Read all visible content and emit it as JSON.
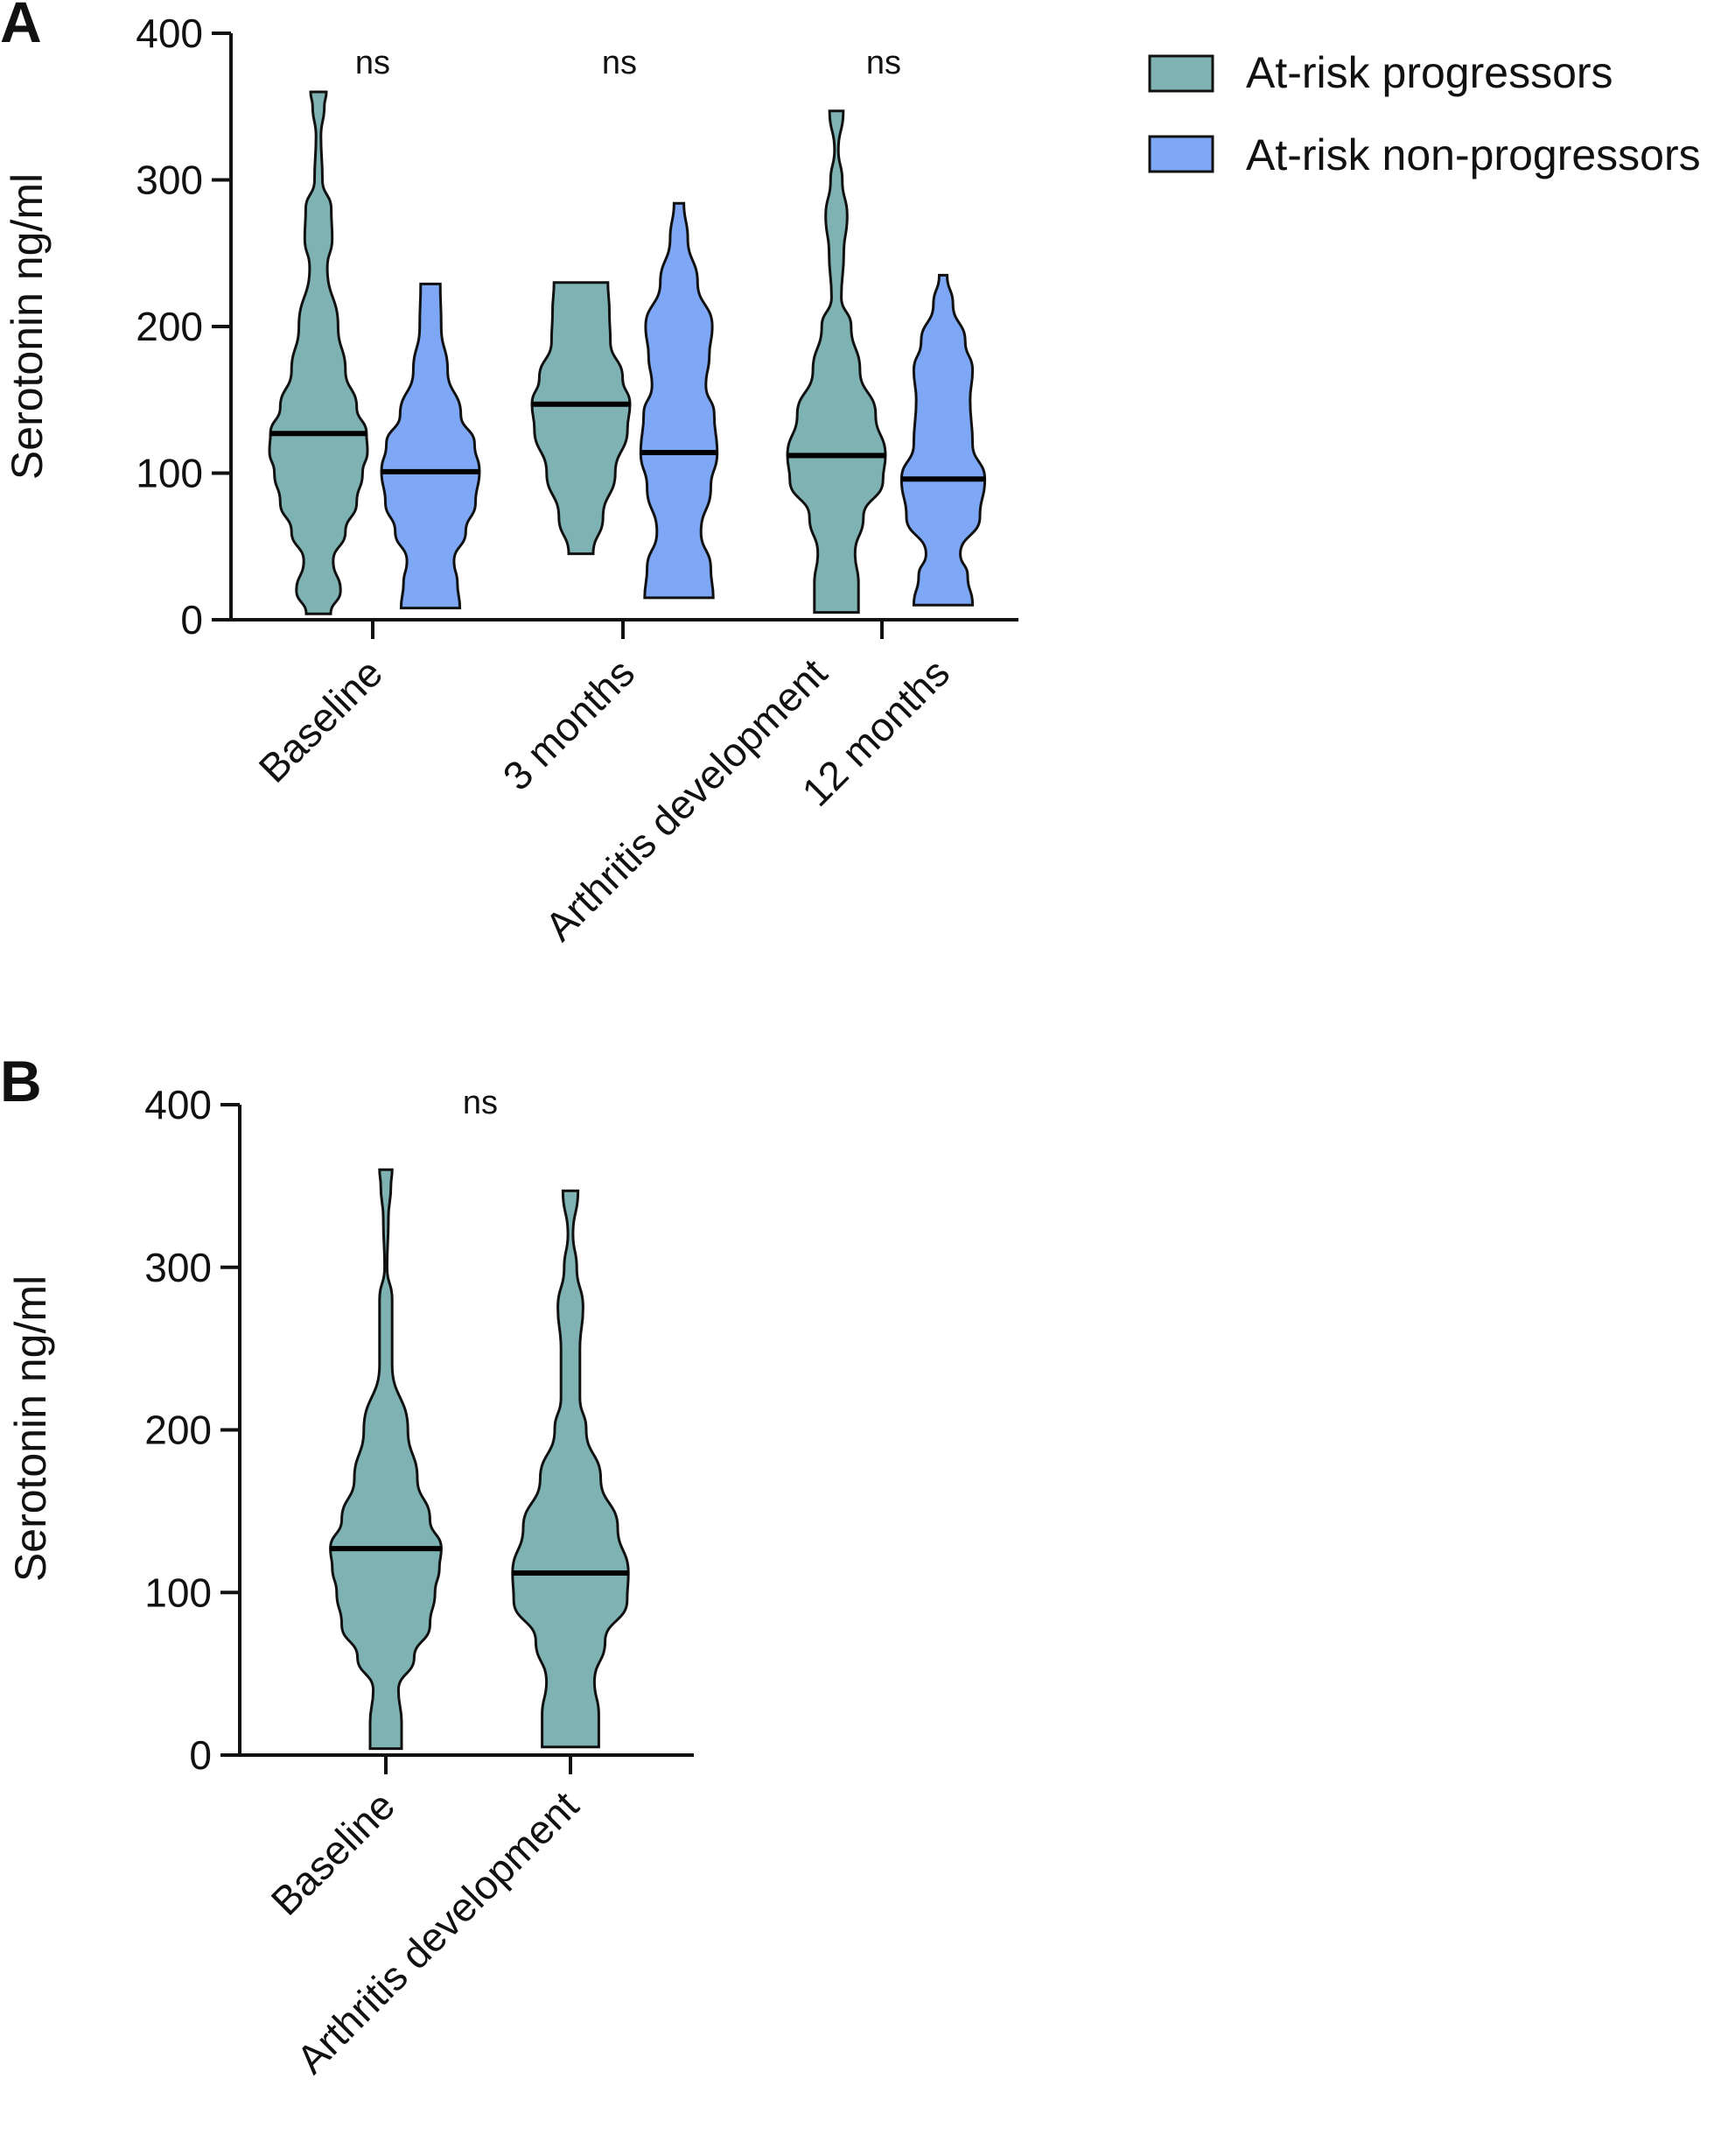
{
  "legend": {
    "items": [
      {
        "label": "At-risk progressors",
        "color": "#7fb3b3"
      },
      {
        "label": "At-risk non-progressors",
        "color": "#7ea7f5"
      }
    ]
  },
  "chart_data": [
    {
      "type": "violin",
      "panel": "A",
      "ylabel": "Serotonin ng/ml",
      "ylim": [
        0,
        400
      ],
      "yticks": [
        0,
        100,
        200,
        300,
        400
      ],
      "categories": [
        "Baseline",
        "3 months",
        "Arthritis development",
        "12 months"
      ],
      "significance": [
        "ns",
        "ns",
        "ns"
      ],
      "violins": [
        {
          "series": "At-risk progressors",
          "category": "Baseline",
          "min": 4,
          "max": 360,
          "median": 127,
          "profile": [
            [
              4,
              0.25
            ],
            [
              20,
              0.45
            ],
            [
              40,
              0.3
            ],
            [
              60,
              0.55
            ],
            [
              80,
              0.78
            ],
            [
              100,
              0.9
            ],
            [
              115,
              1.0
            ],
            [
              127,
              0.98
            ],
            [
              145,
              0.78
            ],
            [
              170,
              0.55
            ],
            [
              200,
              0.4
            ],
            [
              240,
              0.18
            ],
            [
              260,
              0.28
            ],
            [
              280,
              0.26
            ],
            [
              300,
              0.08
            ],
            [
              330,
              0.05
            ],
            [
              350,
              0.12
            ],
            [
              360,
              0.16
            ]
          ]
        },
        {
          "series": "At-risk non-progressors",
          "category": "Baseline",
          "min": 8,
          "max": 229,
          "median": 101,
          "profile": [
            [
              8,
              0.6
            ],
            [
              25,
              0.55
            ],
            [
              40,
              0.48
            ],
            [
              60,
              0.72
            ],
            [
              80,
              0.92
            ],
            [
              101,
              1.0
            ],
            [
              120,
              0.9
            ],
            [
              140,
              0.62
            ],
            [
              170,
              0.35
            ],
            [
              200,
              0.22
            ],
            [
              229,
              0.2
            ]
          ]
        },
        {
          "series": "At-risk progressors",
          "category": "3 months",
          "min": 45,
          "max": 230,
          "median": 147,
          "profile": [
            [
              45,
              0.25
            ],
            [
              70,
              0.45
            ],
            [
              100,
              0.7
            ],
            [
              130,
              0.95
            ],
            [
              147,
              1.0
            ],
            [
              165,
              0.85
            ],
            [
              190,
              0.6
            ],
            [
              210,
              0.58
            ],
            [
              230,
              0.55
            ]
          ]
        },
        {
          "series": "At-risk non-progressors",
          "category": "3 months",
          "min": 15,
          "max": 284,
          "median": 114,
          "profile": [
            [
              15,
              0.7
            ],
            [
              35,
              0.65
            ],
            [
              60,
              0.45
            ],
            [
              90,
              0.65
            ],
            [
              114,
              0.78
            ],
            [
              140,
              0.72
            ],
            [
              160,
              0.55
            ],
            [
              180,
              0.62
            ],
            [
              200,
              0.68
            ],
            [
              230,
              0.38
            ],
            [
              260,
              0.18
            ],
            [
              284,
              0.1
            ]
          ]
        },
        {
          "series": "At-risk progressors",
          "category": "Arthritis development",
          "min": 5,
          "max": 347,
          "median": 112,
          "profile": [
            [
              5,
              0.45
            ],
            [
              25,
              0.45
            ],
            [
              45,
              0.38
            ],
            [
              70,
              0.55
            ],
            [
              95,
              0.95
            ],
            [
              112,
              1.0
            ],
            [
              140,
              0.8
            ],
            [
              170,
              0.48
            ],
            [
              200,
              0.3
            ],
            [
              220,
              0.1
            ],
            [
              250,
              0.15
            ],
            [
              275,
              0.22
            ],
            [
              300,
              0.12
            ],
            [
              320,
              0.04
            ],
            [
              347,
              0.14
            ]
          ]
        },
        {
          "series": "At-risk non-progressors",
          "category": "12 months",
          "min": 10,
          "max": 235,
          "median": 96,
          "profile": [
            [
              10,
              0.6
            ],
            [
              30,
              0.5
            ],
            [
              45,
              0.35
            ],
            [
              70,
              0.75
            ],
            [
              96,
              0.85
            ],
            [
              120,
              0.6
            ],
            [
              150,
              0.55
            ],
            [
              170,
              0.6
            ],
            [
              190,
              0.45
            ],
            [
              215,
              0.2
            ],
            [
              235,
              0.08
            ]
          ]
        }
      ]
    },
    {
      "type": "violin",
      "panel": "B",
      "ylabel": "Serotonin ng/ml",
      "ylim": [
        0,
        400
      ],
      "yticks": [
        0,
        100,
        200,
        300,
        400
      ],
      "categories": [
        "Baseline",
        "Arthritis development"
      ],
      "significance": [
        "ns"
      ],
      "violins": [
        {
          "series": "At-risk progressors",
          "category": "Baseline",
          "min": 4,
          "max": 360,
          "median": 127,
          "profile": [
            [
              4,
              0.25
            ],
            [
              20,
              0.25
            ],
            [
              40,
              0.2
            ],
            [
              60,
              0.45
            ],
            [
              80,
              0.7
            ],
            [
              100,
              0.78
            ],
            [
              115,
              0.85
            ],
            [
              127,
              0.88
            ],
            [
              145,
              0.7
            ],
            [
              170,
              0.5
            ],
            [
              200,
              0.35
            ],
            [
              240,
              0.1
            ],
            [
              260,
              0.1
            ],
            [
              280,
              0.1
            ],
            [
              300,
              0.02
            ],
            [
              330,
              0.04
            ],
            [
              350,
              0.08
            ],
            [
              360,
              0.1
            ]
          ]
        },
        {
          "series": "At-risk progressors",
          "category": "Arthritis development",
          "min": 5,
          "max": 347,
          "median": 112,
          "profile": [
            [
              5,
              0.45
            ],
            [
              25,
              0.45
            ],
            [
              45,
              0.38
            ],
            [
              70,
              0.55
            ],
            [
              95,
              0.9
            ],
            [
              112,
              0.92
            ],
            [
              140,
              0.75
            ],
            [
              170,
              0.48
            ],
            [
              200,
              0.25
            ],
            [
              220,
              0.15
            ],
            [
              250,
              0.15
            ],
            [
              275,
              0.2
            ],
            [
              300,
              0.1
            ],
            [
              320,
              0.04
            ],
            [
              347,
              0.12
            ]
          ]
        }
      ]
    }
  ]
}
